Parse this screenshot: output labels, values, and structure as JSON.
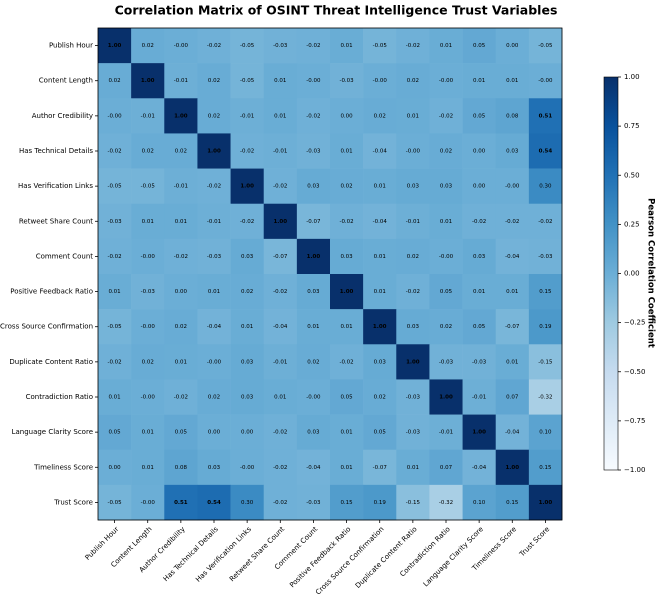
{
  "chart_data": {
    "type": "heatmap",
    "title": "Correlation Matrix of OSINT Threat Intelligence Trust Variables",
    "categories": [
      "Publish Hour",
      "Content Length",
      "Author Credibility",
      "Has Technical Details",
      "Has Verification Links",
      "Retweet Share Count",
      "Comment Count",
      "Positive Feedback Ratio",
      "Cross Source Confirmation",
      "Duplicate Content Ratio",
      "Contradiction Ratio",
      "Language Clarity Score",
      "Timeliness Score",
      "Trust Score"
    ],
    "values": [
      [
        1,
        0.02,
        0,
        -0.02,
        -0.05,
        -0.03,
        -0.02,
        0.01,
        -0.05,
        -0.02,
        0.01,
        0.05,
        0,
        -0.05
      ],
      [
        0.02,
        1,
        -0.01,
        0.02,
        -0.05,
        0.01,
        0,
        -0.03,
        0,
        0.02,
        0,
        0.01,
        0.01,
        0
      ],
      [
        0,
        -0.01,
        1,
        0.02,
        -0.01,
        0.01,
        -0.02,
        0,
        0.02,
        0.01,
        -0.02,
        0.05,
        0.08,
        0.51
      ],
      [
        -0.02,
        0.02,
        0.02,
        1,
        -0.02,
        -0.01,
        -0.03,
        0.01,
        -0.04,
        0,
        0.02,
        0,
        0.03,
        0.54
      ],
      [
        -0.05,
        -0.05,
        -0.01,
        -0.02,
        1,
        -0.02,
        0.03,
        0.02,
        0.01,
        0.03,
        0.03,
        0,
        0,
        0.3
      ],
      [
        -0.03,
        0.01,
        0.01,
        -0.01,
        -0.02,
        1,
        -0.07,
        -0.02,
        -0.04,
        -0.01,
        0.01,
        -0.02,
        -0.02,
        -0.02
      ],
      [
        -0.02,
        0,
        -0.02,
        -0.03,
        0.03,
        -0.07,
        1,
        0.03,
        0.01,
        0.02,
        0,
        0.03,
        -0.04,
        -0.03
      ],
      [
        0.01,
        -0.03,
        0,
        0.01,
        0.02,
        -0.02,
        0.03,
        1,
        0.01,
        -0.02,
        0.05,
        0.01,
        0.01,
        0.15
      ],
      [
        -0.05,
        0,
        0.02,
        -0.04,
        0.01,
        -0.04,
        0.01,
        0.01,
        1,
        0.03,
        0.02,
        0.05,
        -0.07,
        0.19
      ],
      [
        -0.02,
        0.02,
        0.01,
        0,
        0.03,
        -0.01,
        0.02,
        -0.02,
        0.03,
        1,
        -0.03,
        -0.03,
        0.01,
        -0.15
      ],
      [
        0.01,
        0,
        -0.02,
        0.02,
        0.03,
        0.01,
        0,
        0.05,
        0.02,
        -0.03,
        1,
        -0.01,
        0.07,
        -0.32
      ],
      [
        0.05,
        0.01,
        0.05,
        0,
        0,
        -0.02,
        0.03,
        0.01,
        0.05,
        -0.03,
        -0.01,
        1,
        -0.04,
        0.1
      ],
      [
        0,
        0.01,
        0.08,
        0.03,
        0,
        -0.02,
        -0.04,
        0.01,
        -0.07,
        0.01,
        0.07,
        -0.04,
        1,
        0.15
      ],
      [
        -0.05,
        0,
        0.51,
        0.54,
        0.3,
        -0.02,
        -0.03,
        0.15,
        0.19,
        -0.15,
        -0.32,
        0.1,
        0.15,
        1
      ]
    ],
    "value_labels": [
      [
        "1.00",
        "0.02",
        "-0.00",
        "-0.02",
        "-0.05",
        "-0.03",
        "-0.02",
        "0.01",
        "-0.05",
        "-0.02",
        "0.01",
        "0.05",
        "0.00",
        "-0.05"
      ],
      [
        "0.02",
        "1.00",
        "-0.01",
        "0.02",
        "-0.05",
        "0.01",
        "-0.00",
        "-0.03",
        "-0.00",
        "0.02",
        "-0.00",
        "0.01",
        "0.01",
        "-0.00"
      ],
      [
        "-0.00",
        "-0.01",
        "1.00",
        "0.02",
        "-0.01",
        "0.01",
        "-0.02",
        "0.00",
        "0.02",
        "0.01",
        "-0.02",
        "0.05",
        "0.08",
        "0.51"
      ],
      [
        "-0.02",
        "0.02",
        "0.02",
        "1.00",
        "-0.02",
        "-0.01",
        "-0.03",
        "0.01",
        "-0.04",
        "-0.00",
        "0.02",
        "0.00",
        "0.03",
        "0.54"
      ],
      [
        "-0.05",
        "-0.05",
        "-0.01",
        "-0.02",
        "1.00",
        "-0.02",
        "0.03",
        "0.02",
        "0.01",
        "0.03",
        "0.03",
        "0.00",
        "-0.00",
        "0.30"
      ],
      [
        "-0.03",
        "0.01",
        "0.01",
        "-0.01",
        "-0.02",
        "1.00",
        "-0.07",
        "-0.02",
        "-0.04",
        "-0.01",
        "0.01",
        "-0.02",
        "-0.02",
        "-0.02"
      ],
      [
        "-0.02",
        "-0.00",
        "-0.02",
        "-0.03",
        "0.03",
        "-0.07",
        "1.00",
        "0.03",
        "0.01",
        "0.02",
        "-0.00",
        "0.03",
        "-0.04",
        "-0.03"
      ],
      [
        "0.01",
        "-0.03",
        "0.00",
        "0.01",
        "0.02",
        "-0.02",
        "0.03",
        "1.00",
        "0.01",
        "-0.02",
        "0.05",
        "0.01",
        "0.01",
        "0.15"
      ],
      [
        "-0.05",
        "-0.00",
        "0.02",
        "-0.04",
        "0.01",
        "-0.04",
        "0.01",
        "0.01",
        "1.00",
        "0.03",
        "0.02",
        "0.05",
        "-0.07",
        "0.19"
      ],
      [
        "-0.02",
        "0.02",
        "0.01",
        "-0.00",
        "0.03",
        "-0.01",
        "0.02",
        "-0.02",
        "0.03",
        "1.00",
        "-0.03",
        "-0.03",
        "0.01",
        "-0.15"
      ],
      [
        "0.01",
        "-0.00",
        "-0.02",
        "0.02",
        "0.03",
        "0.01",
        "-0.00",
        "0.05",
        "0.02",
        "-0.03",
        "1.00",
        "-0.01",
        "0.07",
        "-0.32"
      ],
      [
        "0.05",
        "0.01",
        "0.05",
        "0.00",
        "0.00",
        "-0.02",
        "0.03",
        "0.01",
        "0.05",
        "-0.03",
        "-0.01",
        "1.00",
        "-0.04",
        "0.10"
      ],
      [
        "0.00",
        "0.01",
        "0.08",
        "0.03",
        "-0.00",
        "-0.02",
        "-0.04",
        "0.01",
        "-0.07",
        "0.01",
        "0.07",
        "-0.04",
        "1.00",
        "0.15"
      ],
      [
        "-0.05",
        "-0.00",
        "0.51",
        "0.54",
        "0.30",
        "-0.02",
        "-0.03",
        "0.15",
        "0.19",
        "-0.15",
        "-0.32",
        "0.10",
        "0.15",
        "1.00"
      ]
    ],
    "colorbar_label": "Pearson Correlation Coefficient",
    "clim": [
      -1,
      1
    ],
    "cticks": [
      {
        "value": -1,
        "label": "−1.00"
      },
      {
        "value": -0.75,
        "label": "−0.75"
      },
      {
        "value": -0.5,
        "label": "−0.50"
      },
      {
        "value": -0.25,
        "label": "−0.25"
      },
      {
        "value": 0,
        "label": "0.00"
      },
      {
        "value": 0.25,
        "label": "0.25"
      },
      {
        "value": 0.5,
        "label": "0.50"
      },
      {
        "value": 0.75,
        "label": "0.75"
      },
      {
        "value": 1,
        "label": "1.00"
      }
    ],
    "colormap": [
      "#f7fbff",
      "#deebf7",
      "#c6dbef",
      "#9ecae1",
      "#6baed6",
      "#4292c6",
      "#2171b5",
      "#08519c",
      "#08306b"
    ]
  }
}
